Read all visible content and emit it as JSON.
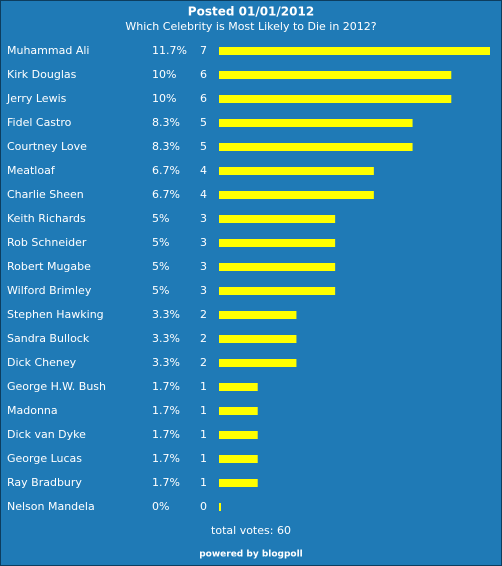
{
  "chart_data": {
    "type": "bar",
    "orientation": "horizontal",
    "title": "Posted 01/01/2012",
    "subtitle": "Which Celebrity is Most Likely to Die in 2012?",
    "categories": [
      "Muhammad Ali",
      "Kirk Douglas",
      "Jerry Lewis",
      "Fidel Castro",
      "Courtney Love",
      "Meatloaf",
      "Charlie Sheen",
      "Keith Richards",
      "Rob Schneider",
      "Robert Mugabe",
      "Wilford Brimley",
      "Stephen Hawking",
      "Sandra Bullock",
      "Dick Cheney",
      "George H.W. Bush",
      "Madonna",
      "Dick van Dyke",
      "George Lucas",
      "Ray Bradbury",
      "Nelson Mandela"
    ],
    "values": [
      7,
      6,
      6,
      5,
      5,
      4,
      4,
      3,
      3,
      3,
      3,
      2,
      2,
      2,
      1,
      1,
      1,
      1,
      1,
      0
    ],
    "percent_labels": [
      "11.7%",
      "10%",
      "10%",
      "8.3%",
      "8.3%",
      "6.7%",
      "6.7%",
      "5%",
      "5%",
      "5%",
      "5%",
      "3.3%",
      "3.3%",
      "3.3%",
      "1.7%",
      "1.7%",
      "1.7%",
      "1.7%",
      "1.7%",
      "0%"
    ],
    "color": "#ffff00",
    "xlim": [
      0,
      7
    ],
    "total_label": "total votes: 60",
    "footer": "powered by blogpoll"
  }
}
